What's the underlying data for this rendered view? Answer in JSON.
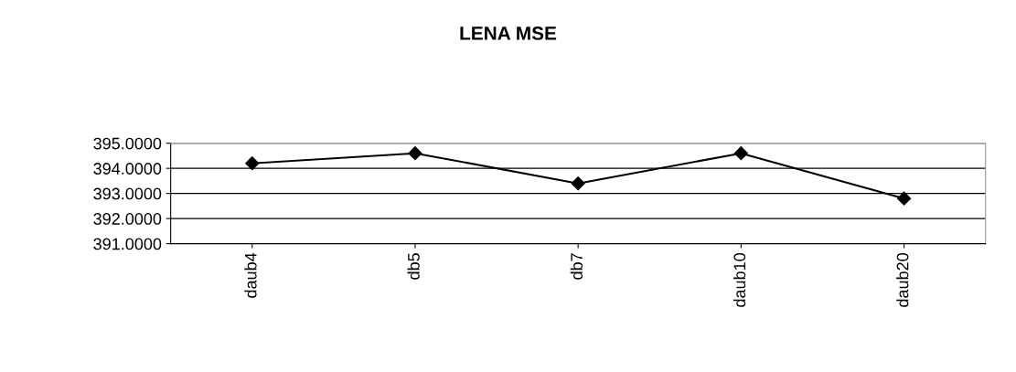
{
  "chart_data": {
    "type": "line",
    "title": "LENA MSE",
    "categories": [
      "daub4",
      "db5",
      "db7",
      "daub10",
      "daub20"
    ],
    "series": [
      {
        "color": "#000000",
        "values": [
          394.2,
          394.6,
          393.4,
          394.6,
          392.8
        ]
      }
    ],
    "ylim": [
      391,
      395
    ],
    "yticks": [
      {
        "value": 391,
        "label": "391.0000"
      },
      {
        "value": 392,
        "label": "392.0000"
      },
      {
        "value": 393,
        "label": "393.0000"
      },
      {
        "value": 394,
        "label": "394.0000"
      },
      {
        "value": 395,
        "label": "395.0000"
      }
    ],
    "grid": "y",
    "marker": "diamond",
    "line_style": "solid"
  }
}
